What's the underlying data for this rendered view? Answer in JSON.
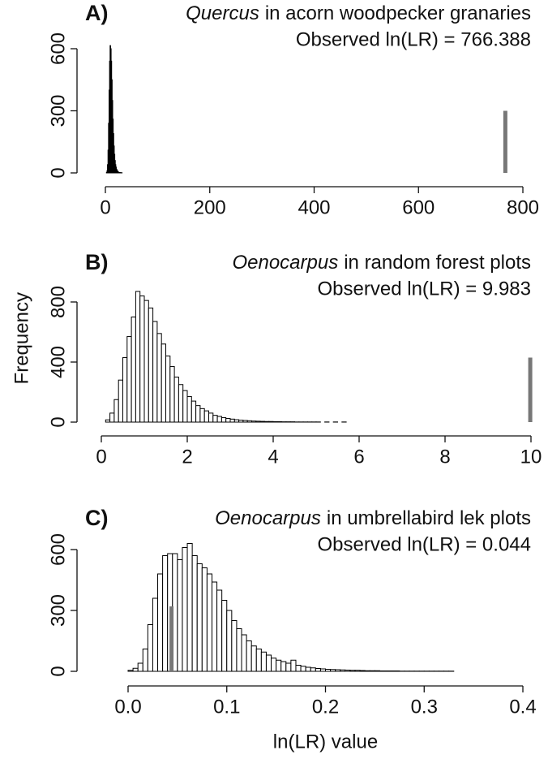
{
  "chart_data": [
    {
      "type": "histogram",
      "panel": "A)",
      "taxon": "Quercus",
      "title": "in acorn woodpecker granaries",
      "observed": {
        "value": 766.388,
        "label": "Observed ln(LR) = 766.388"
      },
      "observed_height": 300,
      "observed_color": "#777777",
      "bins": [
        0,
        1,
        2,
        3,
        4,
        5,
        6,
        7,
        8,
        9,
        10,
        11,
        12,
        13,
        14,
        15,
        16,
        17,
        18,
        19,
        20,
        21,
        22,
        23,
        24,
        25,
        26,
        27,
        28,
        29,
        30,
        31,
        32
      ],
      "values": [
        0,
        0,
        2,
        10,
        40,
        110,
        240,
        400,
        540,
        615,
        600,
        540,
        450,
        350,
        260,
        190,
        130,
        90,
        60,
        40,
        28,
        18,
        12,
        8,
        5,
        3,
        2,
        2,
        1,
        1,
        0,
        1
      ],
      "color": "#ffffff",
      "edge_color": "#000000",
      "xlim": [
        0,
        800
      ],
      "xticks": [
        0,
        200,
        400,
        600,
        800
      ],
      "ylim": [
        0,
        640
      ],
      "yticks": [
        0,
        300,
        600
      ]
    },
    {
      "type": "histogram",
      "panel": "B)",
      "taxon": "Oenocarpus",
      "title": "in random forest plots",
      "observed": {
        "value": 9.983,
        "label": "Observed ln(LR) = 9.983"
      },
      "observed_height": 430,
      "observed_color": "#777777",
      "y_label": "Frequency",
      "bins": [
        0.1,
        0.2,
        0.3,
        0.4,
        0.5,
        0.6,
        0.7,
        0.8,
        0.9,
        1.0,
        1.1,
        1.2,
        1.3,
        1.4,
        1.5,
        1.6,
        1.7,
        1.8,
        1.9,
        2.0,
        2.1,
        2.2,
        2.3,
        2.4,
        2.5,
        2.6,
        2.7,
        2.8,
        2.9,
        3.0,
        3.1,
        3.2,
        3.3,
        3.4,
        3.5,
        3.6,
        3.7,
        3.8,
        3.9,
        4.0,
        4.1,
        4.2,
        4.3,
        4.4,
        4.5,
        4.6,
        4.7,
        4.8,
        4.9,
        5.0,
        5.1,
        5.2,
        5.3,
        5.4,
        5.5,
        5.6,
        5.7
      ],
      "values": [
        15,
        60,
        150,
        280,
        430,
        570,
        700,
        870,
        840,
        810,
        760,
        670,
        590,
        520,
        440,
        370,
        300,
        250,
        210,
        170,
        140,
        110,
        90,
        75,
        60,
        45,
        38,
        30,
        24,
        20,
        16,
        13,
        11,
        9,
        7,
        6,
        5,
        4,
        4,
        3,
        3,
        2,
        2,
        2,
        1,
        1,
        1,
        1,
        1,
        1,
        0,
        1,
        0,
        1,
        0,
        1
      ],
      "color": "#ffffff",
      "edge_color": "#000000",
      "xlim": [
        0,
        10
      ],
      "xticks": [
        0,
        2,
        4,
        6,
        8,
        10
      ],
      "ylim": [
        0,
        900
      ],
      "yticks": [
        0,
        400,
        800
      ]
    },
    {
      "type": "histogram",
      "panel": "C)",
      "taxon": "Oenocarpus",
      "title": "in umbrellabird lek plots",
      "observed": {
        "value": 0.044,
        "label": "Observed ln(LR) = 0.044"
      },
      "observed_height": 320,
      "observed_color": "#777777",
      "x_label": "ln(LR) value",
      "bins": [
        0,
        0.005,
        0.01,
        0.015,
        0.02,
        0.025,
        0.03,
        0.035,
        0.04,
        0.045,
        0.05,
        0.055,
        0.06,
        0.065,
        0.07,
        0.075,
        0.08,
        0.085,
        0.09,
        0.095,
        0.1,
        0.105,
        0.11,
        0.115,
        0.12,
        0.125,
        0.13,
        0.135,
        0.14,
        0.145,
        0.15,
        0.155,
        0.16,
        0.165,
        0.17,
        0.175,
        0.18,
        0.185,
        0.19,
        0.195,
        0.2,
        0.205,
        0.21,
        0.215,
        0.22,
        0.225,
        0.23,
        0.235,
        0.24,
        0.245,
        0.25,
        0.255,
        0.26,
        0.265,
        0.27,
        0.275,
        0.28,
        0.285,
        0.29,
        0.295,
        0.3,
        0.305,
        0.31,
        0.315,
        0.32,
        0.325,
        0.33
      ],
      "values": [
        5,
        15,
        40,
        110,
        230,
        360,
        480,
        570,
        580,
        580,
        550,
        610,
        630,
        570,
        530,
        510,
        480,
        440,
        400,
        350,
        300,
        250,
        210,
        180,
        150,
        125,
        110,
        95,
        80,
        65,
        55,
        48,
        40,
        55,
        30,
        25,
        20,
        17,
        14,
        12,
        10,
        9,
        8,
        7,
        6,
        5,
        5,
        4,
        3,
        3,
        3,
        2,
        2,
        2,
        2,
        1,
        1,
        1,
        1,
        1,
        1,
        1,
        1,
        1,
        1,
        1
      ],
      "color": "#ffffff",
      "edge_color": "#000000",
      "xlim": [
        0,
        0.4
      ],
      "xticks": [
        {
          "value": 0,
          "label": "0.0"
        },
        0.1,
        0.2,
        0.3,
        0.4
      ],
      "ylim": [
        0,
        640
      ],
      "yticks": [
        0,
        300,
        600
      ]
    }
  ]
}
